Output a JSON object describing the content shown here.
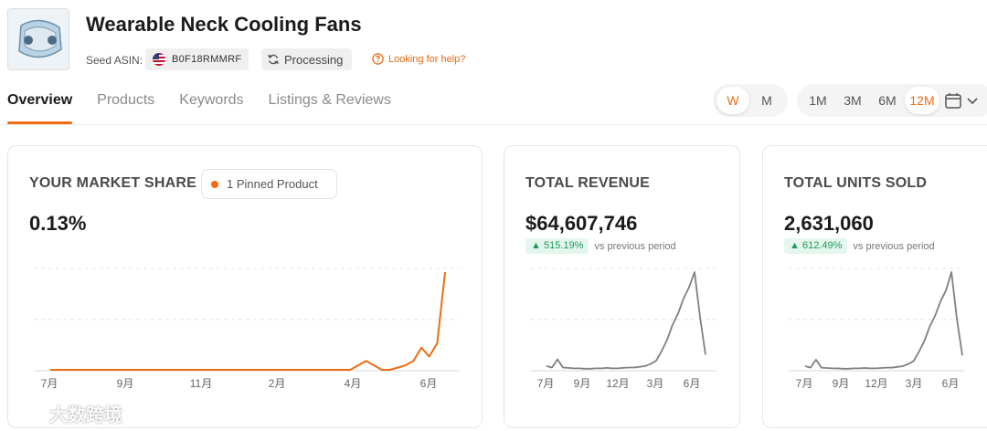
{
  "header": {
    "title": "Wearable Neck Cooling Fans",
    "seed_label": "Seed ASIN:",
    "asin": "B0F18RMMRF",
    "status": "Processing",
    "help": "Looking for help?"
  },
  "tabs": [
    {
      "label": "Overview",
      "active": true
    },
    {
      "label": "Products",
      "active": false
    },
    {
      "label": "Keywords",
      "active": false
    },
    {
      "label": "Listings & Reviews",
      "active": false
    }
  ],
  "granularity": {
    "options": [
      "W",
      "M"
    ],
    "selected": "W"
  },
  "range": {
    "options": [
      "1M",
      "3M",
      "6M",
      "12M"
    ],
    "selected": "12M"
  },
  "cards": {
    "market_share": {
      "title": "YOUR MARKET SHARE",
      "pinned": "1 Pinned Product",
      "value": "0.13%"
    },
    "revenue": {
      "title": "TOTAL REVENUE",
      "value": "$64,607,746",
      "change": "515.19%",
      "note": "vs previous period"
    },
    "units": {
      "title": "TOTAL UNITS SOLD",
      "value": "2,631,060",
      "change": "612.49%",
      "note": "vs previous period"
    }
  },
  "chart_data": [
    {
      "type": "line",
      "x_ticks": [
        "7月",
        "9月",
        "11月",
        "2月",
        "4月",
        "6月"
      ],
      "series": [
        {
          "values": [
            0,
            0,
            0,
            0,
            0,
            0,
            0,
            0,
            0,
            0,
            0,
            0,
            0,
            0,
            0,
            0,
            0,
            0,
            0,
            0,
            0,
            0,
            0,
            0,
            0,
            0,
            0,
            0,
            0,
            0,
            0,
            0,
            0,
            0,
            0,
            0,
            0,
            0,
            0,
            0.01,
            0.02,
            0.01,
            0,
            0,
            0.005,
            0.01,
            0.02,
            0.05,
            0.03,
            0.06,
            0.22
          ],
          "color": "#ef6c13"
        }
      ]
    },
    {
      "type": "line",
      "x_ticks": [
        "7月",
        "9月",
        "12月",
        "3月",
        "6月"
      ],
      "series": [
        {
          "values": [
            0.5,
            0.3,
            1.4,
            0.3,
            0.25,
            0.2,
            0.2,
            0.15,
            0.15,
            0.2,
            0.2,
            0.25,
            0.2,
            0.2,
            0.25,
            0.3,
            0.3,
            0.4,
            0.5,
            0.8,
            1.2,
            2.5,
            4,
            6,
            7.5,
            9.5,
            11,
            13,
            7,
            2
          ],
          "color": "#808080"
        }
      ]
    },
    {
      "type": "line",
      "x_ticks": [
        "7月",
        "9月",
        "12月",
        "3月",
        "6月"
      ],
      "series": [
        {
          "values": [
            0.5,
            0.3,
            1.4,
            0.3,
            0.25,
            0.2,
            0.2,
            0.15,
            0.15,
            0.2,
            0.2,
            0.25,
            0.2,
            0.2,
            0.25,
            0.3,
            0.3,
            0.4,
            0.5,
            0.8,
            1.2,
            2.5,
            4,
            6,
            7.5,
            9.5,
            11,
            13.5,
            7,
            2
          ],
          "color": "#808080"
        }
      ]
    }
  ],
  "watermark": "大数跨境"
}
